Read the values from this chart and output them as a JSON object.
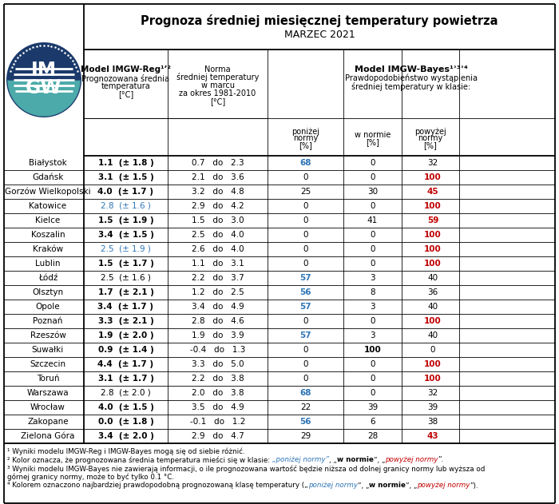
{
  "title_line1": "Prognoza średniej miesięcznej temperatury powietrza",
  "title_line2": "MARZEC 2021",
  "cities": [
    "Białystok",
    "Gdańsk",
    "Gorzów Wielkopolski",
    "Katowice",
    "Kielce",
    "Koszalin",
    "Kraków",
    "Lublin",
    "Łódź",
    "Olsztyn",
    "Opole",
    "Poznań",
    "Rzeszów",
    "Suwałki",
    "Szczecin",
    "Toruń",
    "Warszawa",
    "Wrocław",
    "Zakopane",
    "Zielona Góra"
  ],
  "reg_values": [
    "1.1  (± 1.8 )",
    "3.1  (± 1.5 )",
    "4.0  (± 1.7 )",
    "2.8  (± 1.6 )",
    "1.5  (± 1.9 )",
    "3.4  (± 1.5 )",
    "2.5  (± 1.9 )",
    "1.5  (± 1.7 )",
    "2.5  (± 1.6 )",
    "1.7  (± 2.1 )",
    "3.4  (± 1.7 )",
    "3.3  (± 2.1 )",
    "1.9  (± 2.0 )",
    "0.9  (± 1.4 )",
    "4.4  (± 1.7 )",
    "3.1  (± 1.7 )",
    "2.8  (± 2.0 )",
    "4.0  (± 1.5 )",
    "0.0  (± 1.8 )",
    "3.4  (± 2.0 )"
  ],
  "reg_bold": [
    true,
    true,
    true,
    false,
    true,
    true,
    false,
    true,
    false,
    true,
    true,
    true,
    true,
    true,
    true,
    true,
    false,
    true,
    true,
    true
  ],
  "reg_colors": [
    "black",
    "black",
    "black",
    "#2E75B6",
    "black",
    "black",
    "#2E75B6",
    "black",
    "black",
    "black",
    "black",
    "black",
    "black",
    "black",
    "black",
    "black",
    "black",
    "black",
    "black",
    "black"
  ],
  "norma_values": [
    "0.7   do   2.3",
    "2.1   do   3.6",
    "3.2   do   4.8",
    "2.9   do   4.2",
    "1.5   do   3.0",
    "2.5   do   4.0",
    "2.6   do   4.0",
    "1.1   do   3.1",
    "2.2   do   3.7",
    "1.2   do   2.5",
    "3.4   do   4.9",
    "2.8   do   4.6",
    "1.9   do   3.9",
    "-0.4   do   1.3",
    "3.3   do   5.0",
    "2.2   do   3.8",
    "2.0   do   3.8",
    "3.5   do   4.9",
    "-0.1   do   1.2",
    "2.9   do   4.7"
  ],
  "ponizej": [
    68,
    0,
    25,
    0,
    0,
    0,
    0,
    0,
    57,
    56,
    57,
    0,
    57,
    0,
    0,
    0,
    68,
    22,
    56,
    29
  ],
  "wnormie": [
    0,
    0,
    30,
    0,
    41,
    0,
    0,
    0,
    3,
    8,
    3,
    0,
    3,
    100,
    0,
    0,
    0,
    39,
    6,
    28
  ],
  "powyzej": [
    32,
    100,
    45,
    100,
    59,
    100,
    100,
    100,
    40,
    36,
    40,
    100,
    40,
    0,
    100,
    100,
    32,
    39,
    38,
    43
  ],
  "ponizej_colors": [
    "#2E75B6",
    "black",
    "black",
    "black",
    "black",
    "black",
    "black",
    "black",
    "#2E75B6",
    "#2E75B6",
    "#2E75B6",
    "black",
    "#2E75B6",
    "black",
    "black",
    "black",
    "#2E75B6",
    "black",
    "#2E75B6",
    "black"
  ],
  "wnormie_bold": [
    false,
    false,
    false,
    false,
    false,
    false,
    false,
    false,
    false,
    false,
    false,
    false,
    false,
    true,
    false,
    false,
    false,
    false,
    false,
    false
  ],
  "powyzej_colors": [
    "black",
    "#C00000",
    "#C00000",
    "#C00000",
    "#C00000",
    "#C00000",
    "#C00000",
    "#C00000",
    "black",
    "black",
    "black",
    "#C00000",
    "black",
    "black",
    "#C00000",
    "#C00000",
    "black",
    "black",
    "black",
    "#C00000"
  ],
  "logo_top_color": "#4DAAAA",
  "logo_bottom_color": "#1B3A6B",
  "logo_outer_color": "#1B3A6B",
  "table_bg": "white",
  "border_color": "black"
}
